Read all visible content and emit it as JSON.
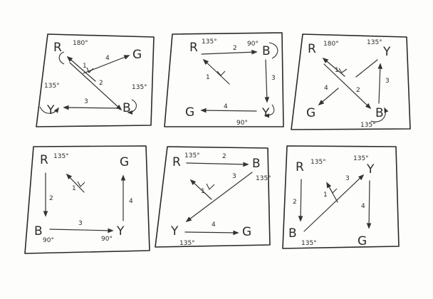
{
  "panels": [
    {
      "letters": {
        "R": "R",
        "G": "G",
        "Y": "Y",
        "B": "B"
      },
      "angles": {
        "R": "180°",
        "Y": "135°",
        "B": "135°"
      },
      "steps": {
        "s1": "1",
        "s2": "2",
        "s3": "3",
        "s4": "4"
      }
    },
    {
      "letters": {
        "R": "R",
        "B": "B",
        "Y": "Y",
        "G": "G"
      },
      "angles": {
        "R": "135°",
        "B": "90°",
        "Y": "90°"
      },
      "steps": {
        "s1": "1",
        "s2": "2",
        "s3": "3",
        "s4": "4"
      }
    },
    {
      "letters": {
        "R": "R",
        "Y": "Y",
        "G": "G",
        "B": "B"
      },
      "angles": {
        "R": "180°",
        "Y": "135°",
        "B": "135°"
      },
      "steps": {
        "s1": "1",
        "s2": "2",
        "s3": "3",
        "s4": "4"
      }
    },
    {
      "letters": {
        "R": "R",
        "G": "G",
        "B": "B",
        "Y": "Y"
      },
      "angles": {
        "R": "135°",
        "B": "90°",
        "Y": "90°"
      },
      "steps": {
        "s1": "1",
        "s2": "2",
        "s3": "3",
        "s4": "4"
      }
    },
    {
      "letters": {
        "R": "R",
        "B": "B",
        "Y": "Y",
        "G": "G"
      },
      "angles": {
        "R": "135°",
        "B": "135°",
        "Y": "135°"
      },
      "steps": {
        "s1": "1",
        "s2": "2",
        "s3": "3",
        "s4": "4"
      }
    },
    {
      "letters": {
        "R": "R",
        "Y": "Y",
        "B": "B",
        "G": "G"
      },
      "angles": {
        "R": "135°",
        "Y": "135°",
        "B": "135°"
      },
      "steps": {
        "s1": "1",
        "s2": "2",
        "s3": "3",
        "s4": "4"
      }
    }
  ]
}
